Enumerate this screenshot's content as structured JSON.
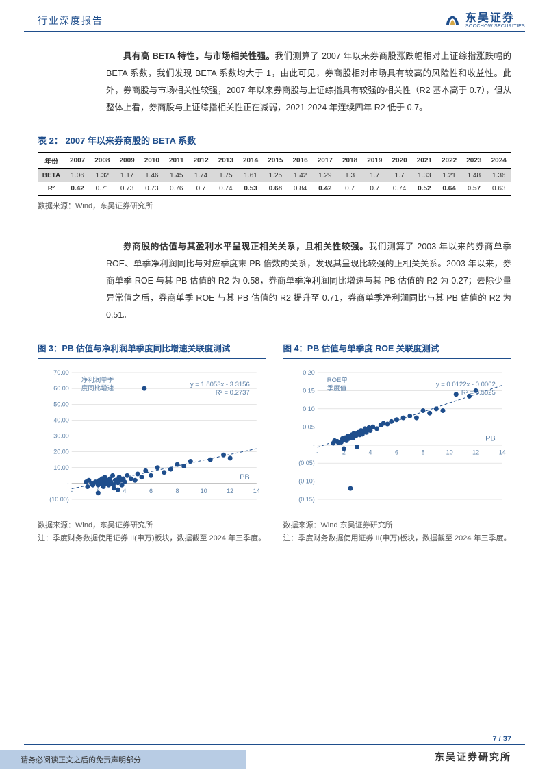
{
  "header": {
    "title": "行业深度报告",
    "logo_cn": "东吴证券",
    "logo_en": "SOOCHOW SECURITIES"
  },
  "para1": {
    "bold_lead": "具有高 BETA 特性，与市场相关性强。",
    "rest": "我们测算了 2007 年以来券商股涨跌幅相对上证综指涨跌幅的 BETA 系数，我们发现 BETA 系数均大于 1，由此可见，券商股相对市场具有较高的风险性和收益性。此外，券商股与市场相关性较强，2007 年以来券商股与上证综指具有较强的相关性（R2 基本高于 0.7），但从整体上看，券商股与上证综指相关性正在减弱，2021-2024 年连续四年 R2 低于 0.7。"
  },
  "table2": {
    "title": "表 2：  2007 年以来券商股的 BETA 系数",
    "header_row": [
      "年份",
      "2007",
      "2008",
      "2009",
      "2010",
      "2011",
      "2012",
      "2013",
      "2014",
      "2015",
      "2016",
      "2017",
      "2018",
      "2019",
      "2020",
      "2021",
      "2022",
      "2023",
      "2024"
    ],
    "beta_row": [
      "BETA",
      "1.06",
      "1.32",
      "1.17",
      "1.46",
      "1.45",
      "1.74",
      "1.75",
      "1.61",
      "1.25",
      "1.42",
      "1.29",
      "1.3",
      "1.7",
      "1.7",
      "1.33",
      "1.21",
      "1.48",
      "1.36"
    ],
    "r2_row": [
      "R²",
      "0.42",
      "0.71",
      "0.73",
      "0.73",
      "0.76",
      "0.7",
      "0.74",
      "0.53",
      "0.68",
      "0.84",
      "0.42",
      "0.7",
      "0.7",
      "0.74",
      "0.52",
      "0.64",
      "0.57",
      "0.63"
    ],
    "r2_bold_idx": [
      1,
      8,
      9,
      11,
      15,
      16,
      17
    ],
    "source": "数据来源：Wind，东吴证券研究所"
  },
  "para2": {
    "bold_lead": "券商股的估值与其盈利水平呈现正相关关系，且相关性较强。",
    "rest": "我们测算了 2003 年以来的券商单季 ROE、单季净利润同比与对应季度末 PB 倍数的关系，发现其呈现比较强的正相关关系。2003 年以来，券商单季 ROE 与其 PB 估值的 R2 为 0.58，券商单季净利润同比增速与其 PB 估值的 R2 为 0.27；去除少量异常值之后，券商单季 ROE 与其 PB 估值的 R2 提升至 0.71，券商单季净利润同比与其 PB 估值的 R2 为 0.51。"
  },
  "chart3": {
    "title": "图 3：PB 估值与净利润单季度同比增速关联度测试",
    "type": "scatter",
    "ylabel1": "净利润单季",
    "ylabel2": "度同比增速",
    "xlabel": "PB",
    "xlim": [
      0,
      14
    ],
    "xtick_step": 2,
    "ylim": [
      -10,
      70
    ],
    "ytick_step": 10,
    "yticks": [
      "(10.00)",
      "-",
      "10.00",
      "20.00",
      "30.00",
      "40.00",
      "50.00",
      "60.00",
      "70.00"
    ],
    "trend_eq": "y = 1.8053x - 3.3156",
    "trend_r2": "R² = 0.2737",
    "trend_x0": 0,
    "trend_y0": -3.3156,
    "trend_x1": 14,
    "trend_y1": 21.96,
    "point_color": "#1f4e8c",
    "trend_color": "#1f4e8c",
    "grid_color": "#cccccc",
    "text_color": "#5b7fa6",
    "points": [
      [
        1.2,
        -2
      ],
      [
        1.5,
        0
      ],
      [
        1.8,
        1
      ],
      [
        2.0,
        -1
      ],
      [
        2.1,
        2
      ],
      [
        2.2,
        0
      ],
      [
        2.3,
        3
      ],
      [
        2.4,
        -2
      ],
      [
        2.5,
        1
      ],
      [
        2.5,
        4
      ],
      [
        2.6,
        0
      ],
      [
        2.7,
        2
      ],
      [
        2.8,
        -1
      ],
      [
        2.9,
        3
      ],
      [
        3.0,
        0
      ],
      [
        3.1,
        5
      ],
      [
        3.2,
        -3
      ],
      [
        3.3,
        2
      ],
      [
        3.4,
        1
      ],
      [
        3.5,
        0.5
      ],
      [
        3.6,
        4
      ],
      [
        3.7,
        2
      ],
      [
        3.8,
        -1
      ],
      [
        3.9,
        3
      ],
      [
        4.0,
        1
      ],
      [
        4.2,
        5
      ],
      [
        4.5,
        3
      ],
      [
        4.8,
        2
      ],
      [
        5.0,
        6
      ],
      [
        5.3,
        4
      ],
      [
        5.6,
        8
      ],
      [
        6.0,
        5
      ],
      [
        6.5,
        10
      ],
      [
        7.0,
        7
      ],
      [
        7.5,
        9
      ],
      [
        8.0,
        12
      ],
      [
        8.5,
        11
      ],
      [
        9.0,
        14
      ],
      [
        5.5,
        60
      ],
      [
        10.5,
        15
      ],
      [
        11.5,
        18
      ],
      [
        12.0,
        16
      ],
      [
        2.0,
        -6
      ],
      [
        3.5,
        -4
      ],
      [
        1.1,
        1
      ],
      [
        1.3,
        2
      ],
      [
        1.6,
        -1
      ],
      [
        1.9,
        0.5
      ],
      [
        2.15,
        1.5
      ],
      [
        2.35,
        -0.5
      ],
      [
        2.55,
        2.5
      ],
      [
        2.75,
        0.8
      ],
      [
        2.95,
        1.2
      ],
      [
        3.15,
        -0.8
      ],
      [
        3.4,
        2.2
      ]
    ],
    "source": "数据来源：Wind，东吴证券研究所",
    "note": "注：季度财务数据使用证券 II(申万)板块，数据截至 2024 年三季度。"
  },
  "chart4": {
    "title": "图 4：PB 估值与单季度 ROE 关联度测试",
    "type": "scatter",
    "ylabel1": "ROE单",
    "ylabel2": "季度值",
    "xlabel": "PB",
    "xlim": [
      0,
      14
    ],
    "xtick_step": 2,
    "ylim": [
      -0.15,
      0.2
    ],
    "ytick_step": 0.05,
    "yticks": [
      "(0.15)",
      "(0.10)",
      "(0.05)",
      "-",
      "0.05",
      "0.10",
      "0.15",
      "0.20"
    ],
    "trend_eq": "y = 0.0122x - 0.0062",
    "trend_r2": "R² = 0.5825",
    "trend_x0": 0,
    "trend_y0": -0.0062,
    "trend_x1": 14,
    "trend_y1": 0.165,
    "point_color": "#1f4e8c",
    "trend_color": "#1f4e8c",
    "grid_color": "#cccccc",
    "text_color": "#5b7fa6",
    "points": [
      [
        1.2,
        0.005
      ],
      [
        1.5,
        0.01
      ],
      [
        1.8,
        0.008
      ],
      [
        2.0,
        0.015
      ],
      [
        2.1,
        0.02
      ],
      [
        2.2,
        0.012
      ],
      [
        2.3,
        0.025
      ],
      [
        2.4,
        0.018
      ],
      [
        2.5,
        0.022
      ],
      [
        2.6,
        0.028
      ],
      [
        2.7,
        0.02
      ],
      [
        2.8,
        0.03
      ],
      [
        2.9,
        0.025
      ],
      [
        3.0,
        0.032
      ],
      [
        3.1,
        0.035
      ],
      [
        3.2,
        0.028
      ],
      [
        3.3,
        0.04
      ],
      [
        3.4,
        0.03
      ],
      [
        3.5,
        0.038
      ],
      [
        3.6,
        0.045
      ],
      [
        3.7,
        0.035
      ],
      [
        3.8,
        0.042
      ],
      [
        3.9,
        0.048
      ],
      [
        4.0,
        0.04
      ],
      [
        4.2,
        0.05
      ],
      [
        4.5,
        0.045
      ],
      [
        4.8,
        0.055
      ],
      [
        5.0,
        0.06
      ],
      [
        5.3,
        0.058
      ],
      [
        5.6,
        0.065
      ],
      [
        6.0,
        0.07
      ],
      [
        6.5,
        0.075
      ],
      [
        7.0,
        0.08
      ],
      [
        7.5,
        0.075
      ],
      [
        8.0,
        0.095
      ],
      [
        8.5,
        0.088
      ],
      [
        9.0,
        0.1
      ],
      [
        9.5,
        0.095
      ],
      [
        10.5,
        0.14
      ],
      [
        11.5,
        0.135
      ],
      [
        12.0,
        0.15
      ],
      [
        2.0,
        -0.01
      ],
      [
        3.0,
        -0.005
      ],
      [
        2.5,
        -0.12
      ],
      [
        1.3,
        0.012
      ],
      [
        1.6,
        0.006
      ],
      [
        1.9,
        0.018
      ],
      [
        2.15,
        0.014
      ],
      [
        2.35,
        0.024
      ],
      [
        2.55,
        0.02
      ],
      [
        2.75,
        0.032
      ],
      [
        2.95,
        0.028
      ]
    ],
    "source": "数据来源：Wind 东吴证券研究所",
    "note": "注：季度财务数据使用证券 II(申万)板块，数据截至 2024 年三季度。"
  },
  "footer": {
    "page": "7 / 37",
    "org": "东吴证券研究所",
    "disclaimer": "请务必阅读正文之后的免责声明部分"
  },
  "colors": {
    "primary": "#1f4e8c",
    "bg": "#ffffff",
    "disclaimer_bg": "#b8cce4"
  }
}
